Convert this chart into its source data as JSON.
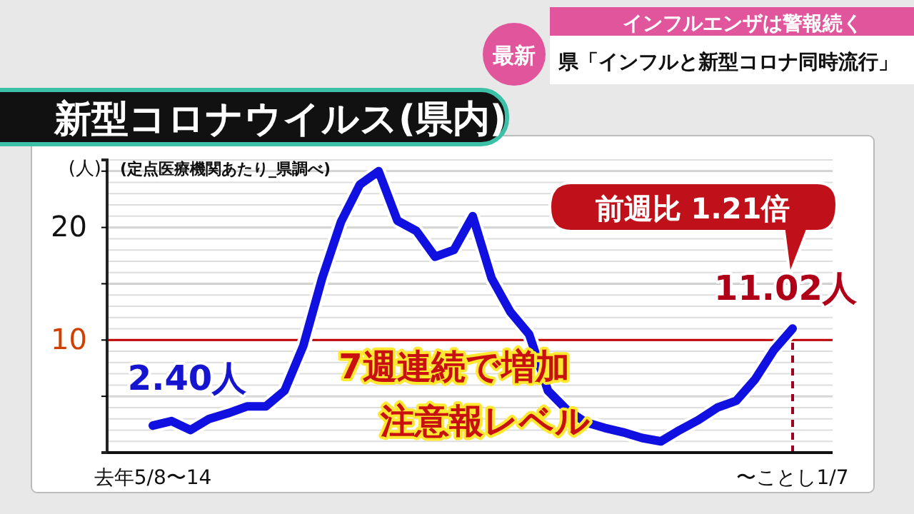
{
  "chart_data": {
    "type": "line",
    "title": "新型コロナウイルス(県内)",
    "ylabel": "(人)",
    "categories": [
      "去年5/8〜14",
      null,
      null,
      null,
      null,
      null,
      null,
      null,
      null,
      null,
      null,
      null,
      null,
      null,
      null,
      null,
      null,
      null,
      null,
      null,
      null,
      null,
      null,
      null,
      null,
      null,
      null,
      null,
      null,
      null,
      null,
      null,
      null,
      null,
      "〜ことし1/7"
    ],
    "series": [
      {
        "color": "#1010e0",
        "values": [
          2.4,
          2.8,
          2.0,
          3.0,
          3.5,
          4.1,
          4.1,
          5.5,
          9.5,
          15.5,
          20.5,
          23.8,
          25.0,
          20.6,
          19.7,
          17.4,
          18.0,
          21.0,
          15.5,
          12.5,
          10.5,
          5.5,
          3.8,
          2.7,
          2.2,
          1.8,
          1.3,
          1.0,
          2.0,
          2.9,
          4.0,
          4.6,
          6.5,
          9.1,
          11.02
        ]
      }
    ],
    "ylim": [
      0,
      26
    ],
    "yticks": [
      {
        "value": 5,
        "label": null
      },
      10,
      {
        "value": 15,
        "label": null
      },
      20,
      {
        "value": 25,
        "label": null
      }
    ],
    "grid": true,
    "line_style": "solid",
    "marker": "none",
    "ref_lines": [
      {
        "axis": "y",
        "value": 10,
        "color": "#c00000",
        "line_style": "solid"
      },
      {
        "axis": "x",
        "value": "〜ことし1/7",
        "color": "#a00020",
        "line_style": "dashed"
      }
    ],
    "annotations": [
      "最新",
      "インフルエンザは警報続く",
      "県「インフルと新型コロナ同時流行」",
      "(定点医療機関あたり_県調べ)",
      {
        "text": "2.40人",
        "x": "去年5/8〜14",
        "y": 2.4
      },
      "前週比 1.21倍",
      {
        "text": "11.02人",
        "x": "〜ことし1/7",
        "y": 11.02
      },
      "7週連続で増加",
      "注意報レベル"
    ]
  }
}
